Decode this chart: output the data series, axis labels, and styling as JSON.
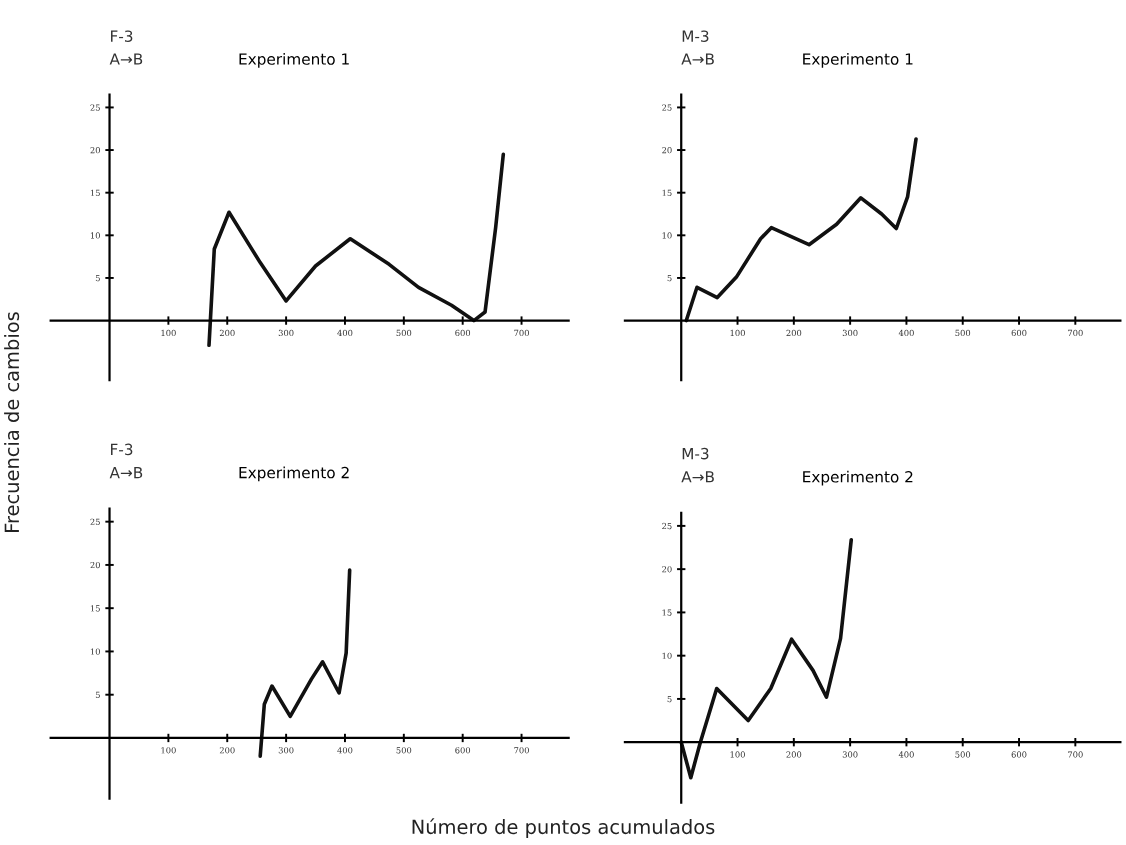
{
  "chart_data": [
    {
      "type": "line",
      "title": "Experimento 1",
      "annotations": [
        "F-3",
        "A→B"
      ],
      "ylabel": "Frecuencia de cambios",
      "series": [
        {
          "color": "#111111",
          "x": [
            169,
            178,
            203,
            256,
            300,
            350,
            409,
            475,
            525,
            581,
            619,
            638,
            656,
            669
          ],
          "values": [
            -2.9,
            8.4,
            12.7,
            6.8,
            2.3,
            6.4,
            9.6,
            6.6,
            3.9,
            1.8,
            0,
            1,
            10.9,
            19.5
          ]
        }
      ],
      "xlim": [
        -100,
        780
      ],
      "ylim": [
        -7,
        26.5
      ],
      "xticks": [
        100,
        200,
        300,
        400,
        500,
        600,
        700
      ],
      "yticks": [
        5,
        10,
        15,
        20,
        25
      ],
      "grid": false,
      "legend": false
    },
    {
      "type": "line",
      "title": "Experimento 1",
      "annotations": [
        "M-3",
        "A→B"
      ],
      "series": [
        {
          "color": "#111111",
          "x": [
            9,
            28,
            64,
            98,
            141,
            160,
            227,
            276,
            319,
            356,
            382,
            402,
            417
          ],
          "values": [
            0,
            3.9,
            2.7,
            5.1,
            9.6,
            10.9,
            8.9,
            11.3,
            14.4,
            12.5,
            10.8,
            14.5,
            21.3
          ]
        }
      ],
      "xlim": [
        -100,
        780
      ],
      "ylim": [
        -7,
        26.5
      ],
      "xticks": [
        100,
        200,
        300,
        400,
        500,
        600,
        700
      ],
      "yticks": [
        5,
        10,
        15,
        20,
        25
      ],
      "grid": false,
      "legend": false
    },
    {
      "type": "line",
      "title": "Experimento 2",
      "annotations": [
        "F-3",
        "A→B"
      ],
      "xlabel": "Número de puntos acumulados",
      "series": [
        {
          "color": "#111111",
          "x": [
            256,
            263,
            276,
            307,
            343,
            362,
            390,
            402,
            408
          ],
          "values": [
            -2.1,
            3.9,
            6.0,
            2.5,
            6.8,
            8.8,
            5.2,
            9.8,
            19.4
          ]
        }
      ],
      "xlim": [
        -100,
        780
      ],
      "ylim": [
        -7,
        26.5
      ],
      "xticks": [
        100,
        200,
        300,
        400,
        500,
        600,
        700
      ],
      "yticks": [
        5,
        10,
        15,
        20,
        25
      ],
      "grid": false,
      "legend": false
    },
    {
      "type": "line",
      "title": "Experimento 2",
      "annotations": [
        "M-3",
        "A→B"
      ],
      "series": [
        {
          "color": "#111111",
          "x": [
            0,
            17,
            34,
            63,
            119,
            159,
            196,
            234,
            258,
            283,
            302
          ],
          "values": [
            0,
            -4.1,
            0,
            6.2,
            2.5,
            6.2,
            11.9,
            8.3,
            5.2,
            12.0,
            23.4
          ]
        }
      ],
      "xlim": [
        -100,
        780
      ],
      "ylim": [
        -7,
        26.5
      ],
      "xticks": [
        100,
        200,
        300,
        400,
        500,
        600,
        700
      ],
      "yticks": [
        5,
        10,
        15,
        20,
        25
      ],
      "grid": false,
      "legend": false
    }
  ]
}
